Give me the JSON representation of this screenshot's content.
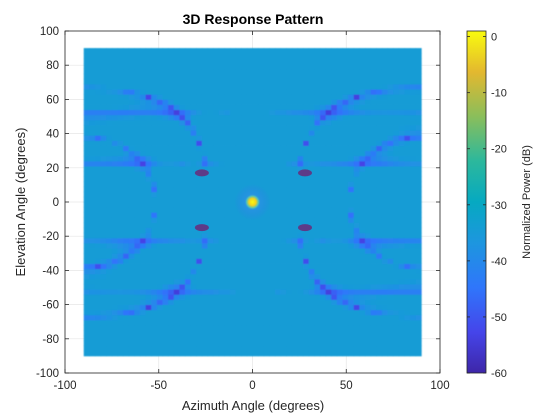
{
  "chart_data": {
    "type": "heatmap",
    "title": "3D Response Pattern",
    "xlabel": "Azimuth Angle (degrees)",
    "ylabel": "Elevation Angle (degrees)",
    "xlim": [
      -100,
      100
    ],
    "ylim": [
      -100,
      100
    ],
    "xticks": [
      -100,
      -50,
      0,
      50,
      100
    ],
    "yticks": [
      -100,
      -80,
      -60,
      -40,
      -20,
      0,
      20,
      40,
      60,
      80,
      100
    ],
    "grid": true,
    "pattern_extent": {
      "azimuth": [
        -90,
        90
      ],
      "elevation": [
        -90,
        90
      ]
    },
    "peak": {
      "azimuth": 0,
      "elevation": 0,
      "value_db": 0
    },
    "notable_nulls": [
      {
        "azimuth": -27,
        "elevation": 17
      },
      {
        "azimuth": 28,
        "elevation": 17
      },
      {
        "azimuth": -27,
        "elevation": -15
      },
      {
        "azimuth": 28,
        "elevation": -15
      }
    ],
    "colorbar": {
      "label": "Normalized Power (dB)",
      "range": [
        -60,
        1
      ],
      "ticks": [
        0,
        -10,
        -20,
        -30,
        -40,
        -50,
        -60
      ],
      "tick_labels": [
        "0",
        "-10",
        "-20",
        "-30",
        "-40",
        "-50",
        "-60"
      ],
      "colormap": "parula"
    }
  },
  "colors": {
    "background": "#ffffff",
    "grid": "#e6e6e6",
    "axis": "#262626",
    "low": "#3e26a8",
    "high": "#f9fb0e"
  }
}
